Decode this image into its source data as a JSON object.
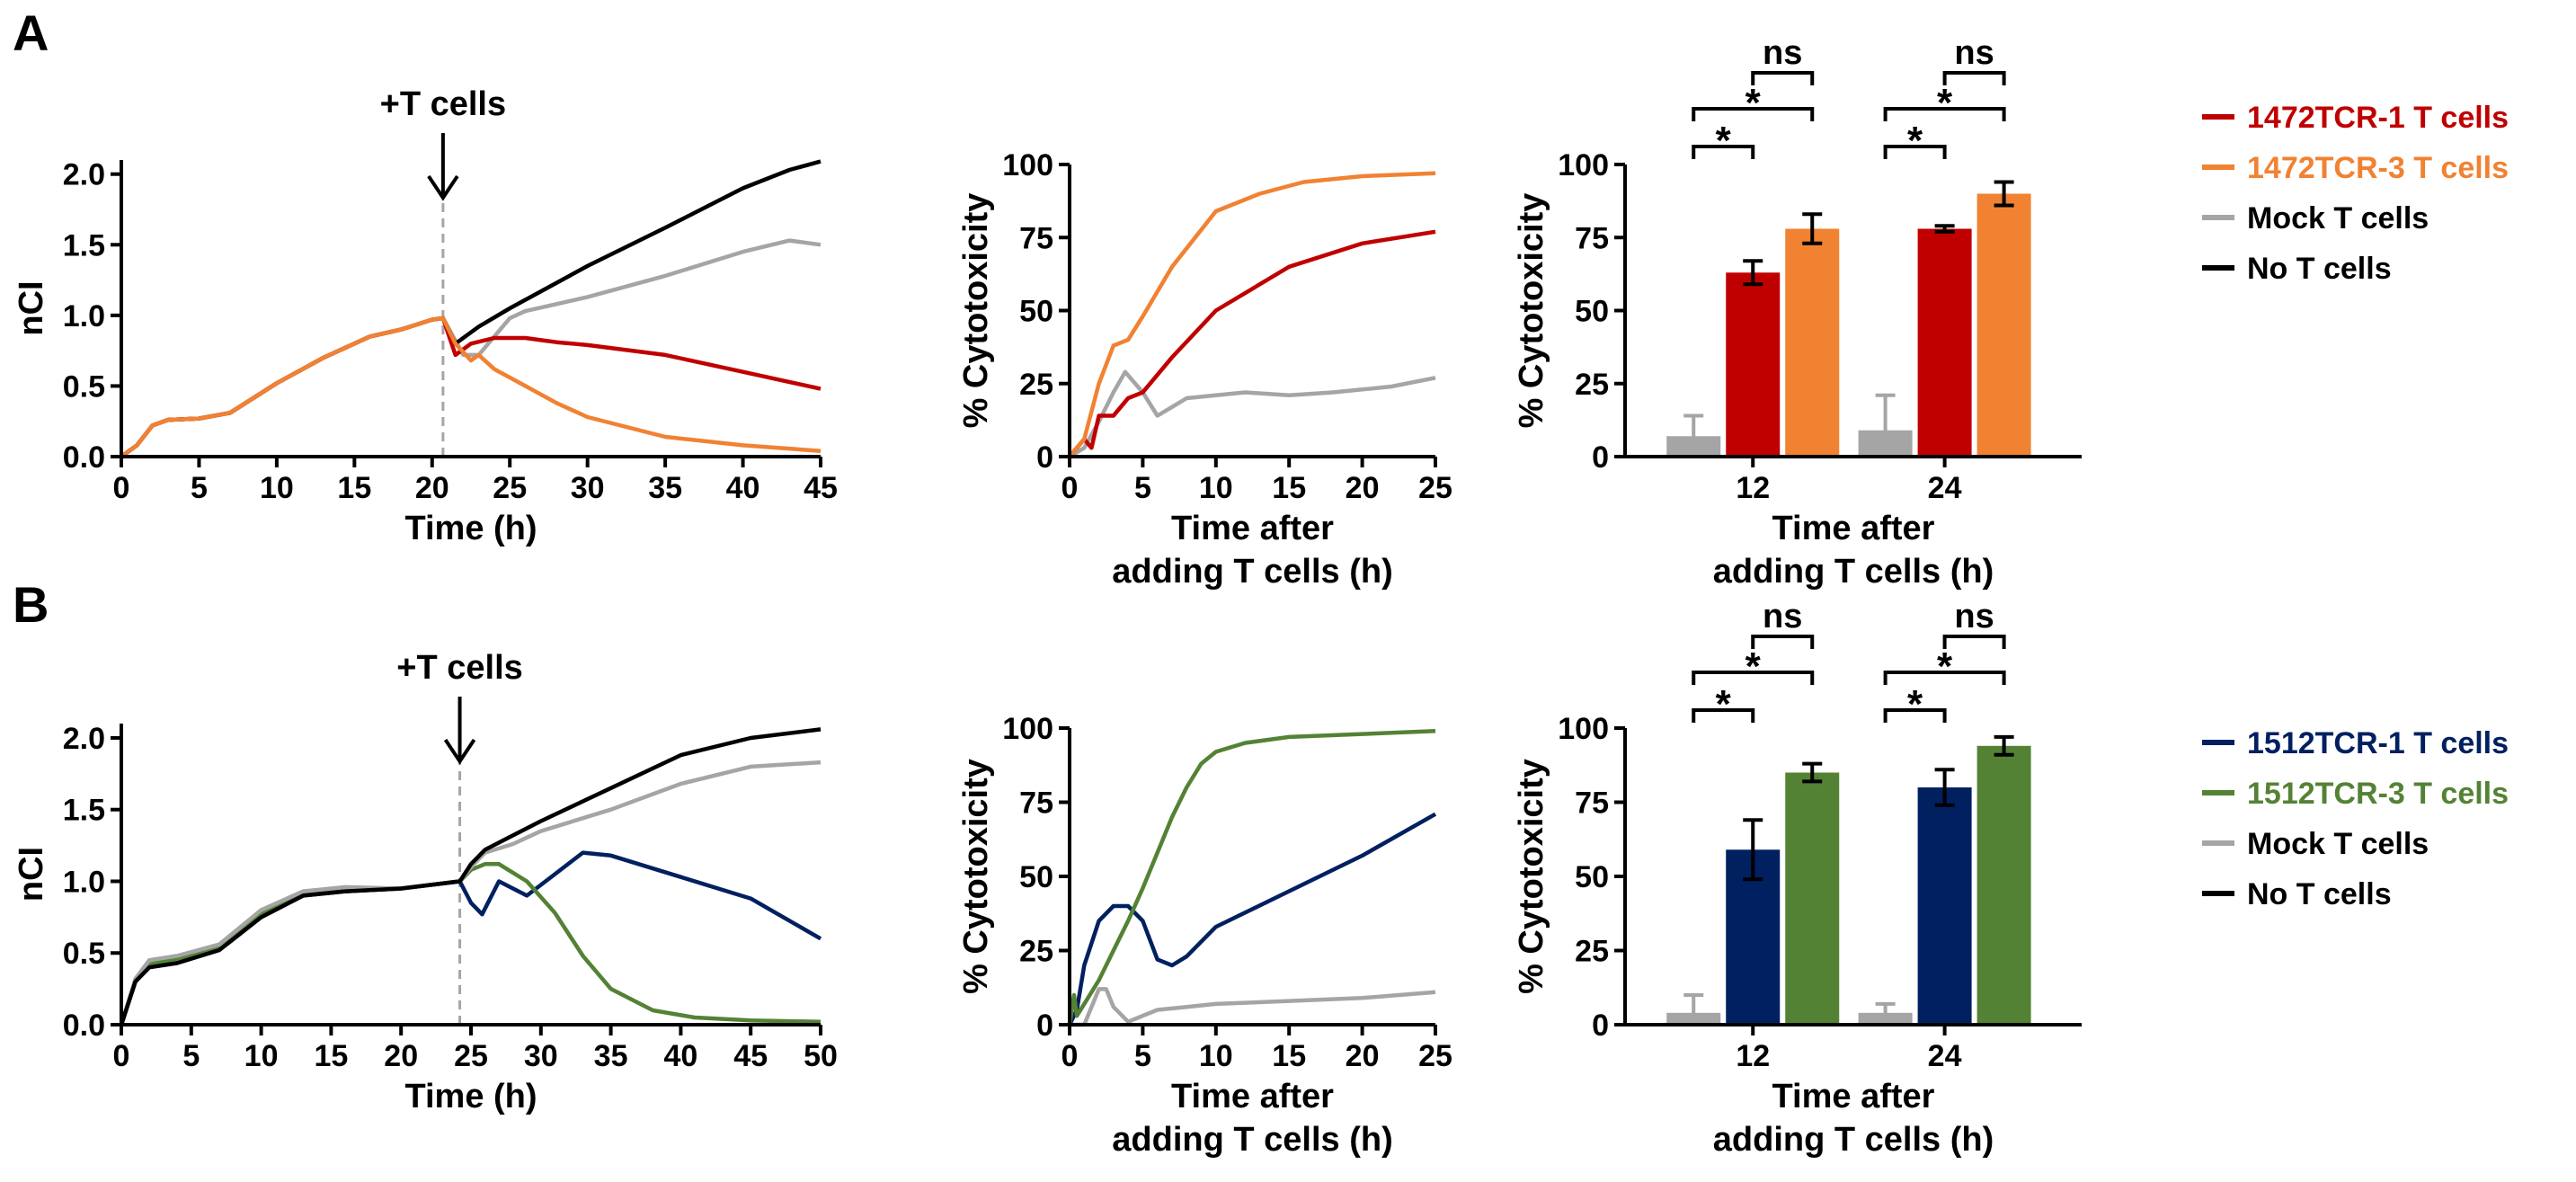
{
  "panels": [
    {
      "label": "A",
      "colors": {
        "tcr1": "#c00000",
        "tcr3": "#f08232",
        "mock": "#a5a5a5",
        "none": "#000000"
      },
      "legend": [
        {
          "text": "1472TCR-1 T cells",
          "color": "#c00000"
        },
        {
          "text": "1472TCR-3 T cells",
          "color": "#f08232"
        },
        {
          "text": "Mock T cells",
          "color": "#a5a5a5"
        },
        {
          "text": "No T cells",
          "color": "#000000"
        }
      ],
      "significance": [
        {
          "text": "ns"
        },
        {
          "text": "*"
        },
        {
          "text": "*"
        },
        {
          "text": "ns"
        },
        {
          "text": "*"
        },
        {
          "text": "*"
        }
      ]
    },
    {
      "label": "B",
      "colors": {
        "tcr1": "#002060",
        "tcr3": "#548235",
        "mock": "#a5a5a5",
        "none": "#000000"
      },
      "legend": [
        {
          "text": "1512TCR-1 T cells",
          "color": "#002060"
        },
        {
          "text": "1512TCR-3 T cells",
          "color": "#548235"
        },
        {
          "text": "Mock T cells",
          "color": "#a5a5a5"
        },
        {
          "text": "No T cells",
          "color": "#000000"
        }
      ],
      "significance": [
        {
          "text": "ns"
        },
        {
          "text": "*"
        },
        {
          "text": "*"
        },
        {
          "text": "ns"
        },
        {
          "text": "*"
        },
        {
          "text": "*"
        }
      ]
    }
  ],
  "chart_data": [
    {
      "id": "A-nci",
      "type": "line",
      "title": "",
      "xlabel": "Time (h)",
      "ylabel": "nCI",
      "xlim": [
        0,
        45
      ],
      "ylim": [
        0,
        2.1
      ],
      "xticks": [
        0,
        5,
        10,
        15,
        20,
        25,
        30,
        35,
        40,
        45
      ],
      "yticks": [
        0.0,
        0.5,
        1.0,
        1.5,
        2.0
      ],
      "ytick_labels": [
        "0.0",
        "0.5",
        "1.0",
        "1.5",
        "2.0"
      ],
      "annotation": {
        "text": "+T cells",
        "x": 20.7
      },
      "series": [
        {
          "name": "Mock T cells",
          "key": "mock",
          "x": [
            0,
            1,
            2,
            3,
            5,
            7,
            10,
            13,
            16,
            18,
            20,
            20.7,
            22,
            23,
            24,
            25,
            26,
            28,
            30,
            35,
            40,
            43,
            45
          ],
          "y": [
            0,
            0.08,
            0.22,
            0.26,
            0.27,
            0.31,
            0.52,
            0.7,
            0.85,
            0.9,
            0.97,
            0.98,
            0.72,
            0.72,
            0.85,
            0.98,
            1.03,
            1.08,
            1.13,
            1.28,
            1.45,
            1.53,
            1.5
          ]
        },
        {
          "name": "No T cells",
          "key": "none",
          "x": [
            0,
            1,
            2,
            3,
            5,
            7,
            10,
            13,
            16,
            18,
            20,
            20.7,
            21.5,
            23,
            25,
            30,
            35,
            40,
            43,
            45
          ],
          "y": [
            0,
            0.08,
            0.22,
            0.26,
            0.27,
            0.31,
            0.52,
            0.7,
            0.85,
            0.9,
            0.97,
            0.98,
            0.8,
            0.92,
            1.05,
            1.35,
            1.62,
            1.9,
            2.03,
            2.09
          ]
        },
        {
          "name": "1472TCR-1 T cells",
          "key": "tcr1",
          "x": [
            0,
            1,
            2,
            3,
            5,
            7,
            10,
            13,
            16,
            18,
            20,
            20.7,
            21.5,
            22.5,
            24,
            26,
            28,
            30,
            35,
            40,
            45
          ],
          "y": [
            0,
            0.08,
            0.22,
            0.26,
            0.27,
            0.31,
            0.52,
            0.7,
            0.85,
            0.9,
            0.97,
            0.98,
            0.72,
            0.8,
            0.84,
            0.84,
            0.81,
            0.79,
            0.72,
            0.6,
            0.48
          ]
        },
        {
          "name": "1472TCR-3 T cells",
          "key": "tcr3",
          "x": [
            0,
            1,
            2,
            3,
            5,
            7,
            10,
            13,
            16,
            18,
            20,
            20.7,
            21.5,
            22.5,
            23,
            24,
            26,
            28,
            30,
            35,
            40,
            45
          ],
          "y": [
            0,
            0.08,
            0.22,
            0.26,
            0.27,
            0.31,
            0.52,
            0.7,
            0.85,
            0.9,
            0.97,
            0.98,
            0.8,
            0.68,
            0.72,
            0.62,
            0.5,
            0.38,
            0.28,
            0.14,
            0.08,
            0.04
          ]
        }
      ]
    },
    {
      "id": "A-cyto",
      "type": "line",
      "xlabel": "Time after\nadding T cells (h)",
      "ylabel": "% Cytotoxicity",
      "xlim": [
        0,
        25
      ],
      "ylim": [
        0,
        100
      ],
      "xticks": [
        0,
        5,
        10,
        15,
        20,
        25
      ],
      "yticks": [
        0,
        25,
        50,
        75,
        100
      ],
      "series": [
        {
          "name": "Mock T cells",
          "key": "mock",
          "x": [
            0,
            1,
            2,
            3,
            3.8,
            5,
            6,
            7,
            8,
            10,
            12,
            15,
            18,
            20,
            22,
            25
          ],
          "y": [
            0,
            3,
            12,
            22,
            29,
            22,
            14,
            17,
            20,
            21,
            22,
            21,
            22,
            23,
            24,
            27
          ]
        },
        {
          "name": "1472TCR-1 T cells",
          "key": "tcr1",
          "x": [
            0,
            1,
            1.5,
            2,
            3,
            4,
            5,
            7,
            10,
            15,
            20,
            25
          ],
          "y": [
            0,
            6,
            3,
            14,
            14,
            20,
            22,
            34,
            50,
            65,
            73,
            77
          ]
        },
        {
          "name": "1472TCR-3 T cells",
          "key": "tcr3",
          "x": [
            0,
            1,
            2,
            3,
            4,
            5,
            7,
            10,
            13,
            16,
            20,
            25
          ],
          "y": [
            0,
            6,
            25,
            38,
            40,
            48,
            65,
            84,
            90,
            94,
            96,
            97
          ]
        }
      ]
    },
    {
      "id": "A-bar",
      "type": "bar",
      "xlabel": "Time after\nadding T cells (h)",
      "ylabel": "% Cytotoxicity",
      "ylim": [
        0,
        100
      ],
      "yticks": [
        0,
        25,
        50,
        75,
        100
      ],
      "categories": [
        "12",
        "24"
      ],
      "series": [
        {
          "name": "Mock T cells",
          "key": "mock",
          "values": [
            7,
            9
          ],
          "errors": [
            7,
            12
          ]
        },
        {
          "name": "1472TCR-1 T cells",
          "key": "tcr1",
          "values": [
            63,
            78
          ],
          "errors": [
            4,
            1
          ]
        },
        {
          "name": "1472TCR-3 T cells",
          "key": "tcr3",
          "values": [
            78,
            90
          ],
          "errors": [
            5,
            4
          ]
        }
      ]
    },
    {
      "id": "B-nci",
      "type": "line",
      "xlabel": "Time (h)",
      "ylabel": "nCI",
      "xlim": [
        0,
        50
      ],
      "ylim": [
        0,
        2.1
      ],
      "xticks": [
        0,
        5,
        10,
        15,
        20,
        25,
        30,
        35,
        40,
        45,
        50
      ],
      "yticks": [
        0.0,
        0.5,
        1.0,
        1.5,
        2.0
      ],
      "ytick_labels": [
        "0.0",
        "0.5",
        "1.0",
        "1.5",
        "2.0"
      ],
      "annotation": {
        "text": "+T cells",
        "x": 24.2
      },
      "series": [
        {
          "name": "1512TCR-1 T cells",
          "key": "tcr1",
          "x": [
            0,
            1,
            2,
            4,
            7,
            10,
            13,
            16,
            20,
            24.2,
            25,
            25.8,
            27,
            29,
            31,
            33,
            35,
            40,
            45,
            50
          ],
          "y": [
            0,
            0.3,
            0.4,
            0.43,
            0.52,
            0.75,
            0.9,
            0.93,
            0.95,
            1.0,
            0.85,
            0.77,
            1.0,
            0.9,
            1.05,
            1.2,
            1.18,
            1.03,
            0.88,
            0.6
          ]
        },
        {
          "name": "1512TCR-3 T cells",
          "key": "tcr3",
          "x": [
            0,
            1,
            2,
            4,
            7,
            10,
            13,
            16,
            20,
            24.2,
            25,
            26,
            27,
            29,
            31,
            33,
            35,
            38,
            41,
            45,
            50
          ],
          "y": [
            0,
            0.3,
            0.42,
            0.46,
            0.55,
            0.78,
            0.91,
            0.93,
            0.95,
            1.0,
            1.08,
            1.12,
            1.12,
            1.0,
            0.78,
            0.48,
            0.25,
            0.1,
            0.05,
            0.03,
            0.02
          ]
        },
        {
          "name": "Mock T cells",
          "key": "mock",
          "x": [
            0,
            1,
            2,
            4,
            7,
            10,
            13,
            16,
            20,
            24.2,
            25,
            26,
            28,
            30,
            35,
            40,
            45,
            50
          ],
          "y": [
            0,
            0.32,
            0.45,
            0.48,
            0.56,
            0.8,
            0.93,
            0.96,
            0.95,
            1.0,
            1.1,
            1.2,
            1.26,
            1.35,
            1.5,
            1.68,
            1.8,
            1.83
          ]
        },
        {
          "name": "No T cells",
          "key": "none",
          "x": [
            0,
            1,
            2,
            4,
            7,
            10,
            13,
            16,
            20,
            24.2,
            25,
            26,
            28,
            30,
            35,
            40,
            45,
            50
          ],
          "y": [
            0,
            0.3,
            0.4,
            0.43,
            0.52,
            0.75,
            0.9,
            0.93,
            0.95,
            1.0,
            1.12,
            1.22,
            1.32,
            1.42,
            1.65,
            1.88,
            2.0,
            2.06
          ]
        }
      ]
    },
    {
      "id": "B-cyto",
      "type": "line",
      "xlabel": "Time after\nadding T cells (h)",
      "ylabel": "% Cytotoxicity",
      "xlim": [
        0,
        25
      ],
      "ylim": [
        0,
        100
      ],
      "xticks": [
        0,
        5,
        10,
        15,
        20,
        25
      ],
      "yticks": [
        0,
        25,
        50,
        75,
        100
      ],
      "series": [
        {
          "name": "Mock T cells",
          "key": "mock",
          "x": [
            0,
            1,
            2,
            2.5,
            3,
            4,
            5,
            6,
            8,
            10,
            15,
            20,
            25
          ],
          "y": [
            0,
            0,
            12,
            12,
            6,
            1,
            3,
            5,
            6,
            7,
            8,
            9,
            11
          ]
        },
        {
          "name": "1512TCR-1 T cells",
          "key": "tcr1",
          "x": [
            0,
            0.5,
            1,
            2,
            3,
            4,
            5,
            6,
            7,
            8,
            10,
            15,
            20,
            25
          ],
          "y": [
            0,
            5,
            20,
            35,
            40,
            40,
            35,
            22,
            20,
            23,
            33,
            45,
            57,
            71
          ]
        },
        {
          "name": "1512TCR-3 T cells",
          "key": "tcr3",
          "x": [
            0,
            0.3,
            0.5,
            1,
            2,
            3,
            4,
            5,
            6,
            7,
            8,
            9,
            10,
            12,
            15,
            20,
            25
          ],
          "y": [
            0,
            10,
            3,
            7,
            15,
            25,
            35,
            46,
            58,
            70,
            80,
            88,
            92,
            95,
            97,
            98,
            99
          ]
        }
      ]
    },
    {
      "id": "B-bar",
      "type": "bar",
      "xlabel": "Time after\nadding T cells (h)",
      "ylabel": "% Cytotoxicity",
      "ylim": [
        0,
        100
      ],
      "yticks": [
        0,
        25,
        50,
        75,
        100
      ],
      "categories": [
        "12",
        "24"
      ],
      "series": [
        {
          "name": "Mock T cells",
          "key": "mock",
          "values": [
            4,
            4
          ],
          "errors": [
            6,
            3
          ]
        },
        {
          "name": "1512TCR-1 T cells",
          "key": "tcr1",
          "values": [
            59,
            80
          ],
          "errors": [
            10,
            6
          ]
        },
        {
          "name": "1512TCR-3 T cells",
          "key": "tcr3",
          "values": [
            85,
            94
          ],
          "errors": [
            3,
            3
          ]
        }
      ]
    }
  ]
}
